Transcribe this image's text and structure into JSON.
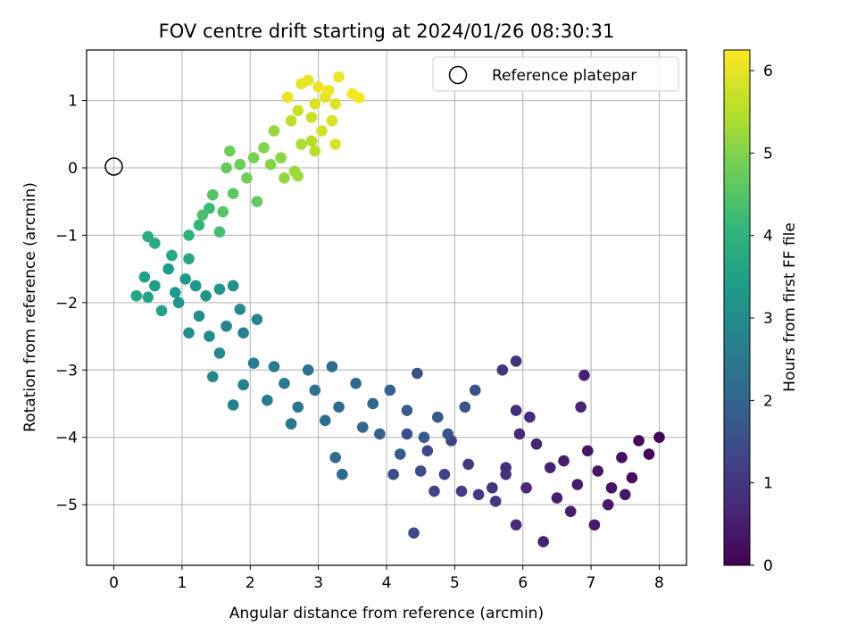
{
  "chart_data": {
    "type": "scatter",
    "title": "FOV centre drift starting at 2024/01/26 08:30:31",
    "xlabel": "Angular distance from reference (arcmin)",
    "ylabel": "Rotation from reference (arcmin)",
    "xlim": [
      -0.4,
      8.4
    ],
    "ylim": [
      -5.9,
      1.75
    ],
    "x_ticks": [
      0,
      1,
      2,
      3,
      4,
      5,
      6,
      7,
      8
    ],
    "y_ticks": [
      -5,
      -4,
      -3,
      -2,
      -1,
      0,
      1
    ],
    "grid": true,
    "legend": {
      "placement": "top-right",
      "entries": [
        "Reference platepar"
      ]
    },
    "reference_point": {
      "x": 0,
      "y": 0,
      "label": "Reference platepar"
    },
    "colorbar": {
      "label": "Hours from first FF file",
      "range": [
        0,
        6.25
      ],
      "ticks": [
        0,
        1,
        2,
        3,
        4,
        5,
        6
      ],
      "colormap": "viridis"
    },
    "series": [
      {
        "points": [
          {
            "x": 8.0,
            "y": -4.0,
            "h": 0.05
          },
          {
            "x": 7.85,
            "y": -4.25,
            "h": 0.1
          },
          {
            "x": 7.7,
            "y": -4.05,
            "h": 0.15
          },
          {
            "x": 7.6,
            "y": -4.6,
            "h": 0.2
          },
          {
            "x": 7.45,
            "y": -4.3,
            "h": 0.25
          },
          {
            "x": 7.3,
            "y": -4.75,
            "h": 0.3
          },
          {
            "x": 7.1,
            "y": -4.5,
            "h": 0.35
          },
          {
            "x": 6.95,
            "y": -4.2,
            "h": 0.4
          },
          {
            "x": 7.05,
            "y": -5.3,
            "h": 0.42
          },
          {
            "x": 6.8,
            "y": -4.7,
            "h": 0.45
          },
          {
            "x": 6.6,
            "y": -4.35,
            "h": 0.5
          },
          {
            "x": 6.5,
            "y": -4.9,
            "h": 0.55
          },
          {
            "x": 6.3,
            "y": -5.55,
            "h": 0.58
          },
          {
            "x": 6.4,
            "y": -4.45,
            "h": 0.6
          },
          {
            "x": 6.2,
            "y": -4.1,
            "h": 0.65
          },
          {
            "x": 6.05,
            "y": -4.75,
            "h": 0.7
          },
          {
            "x": 5.9,
            "y": -5.3,
            "h": 0.72
          },
          {
            "x": 5.95,
            "y": -3.95,
            "h": 0.75
          },
          {
            "x": 5.9,
            "y": -3.6,
            "h": 0.78
          },
          {
            "x": 6.1,
            "y": -3.7,
            "h": 0.8
          },
          {
            "x": 5.75,
            "y": -4.45,
            "h": 0.82
          },
          {
            "x": 5.9,
            "y": -2.87,
            "h": 0.85
          },
          {
            "x": 6.9,
            "y": -3.08,
            "h": 0.6
          },
          {
            "x": 6.85,
            "y": -3.55,
            "h": 0.65
          },
          {
            "x": 7.5,
            "y": -4.85,
            "h": 0.4
          },
          {
            "x": 7.25,
            "y": -5.0,
            "h": 0.45
          },
          {
            "x": 6.7,
            "y": -5.1,
            "h": 0.5
          },
          {
            "x": 5.75,
            "y": -4.55,
            "h": 0.9
          },
          {
            "x": 5.55,
            "y": -4.75,
            "h": 0.95
          },
          {
            "x": 5.7,
            "y": -3.0,
            "h": 0.95
          },
          {
            "x": 5.6,
            "y": -4.95,
            "h": 1.0
          },
          {
            "x": 5.35,
            "y": -4.85,
            "h": 1.05
          },
          {
            "x": 5.2,
            "y": -4.4,
            "h": 1.1
          },
          {
            "x": 5.1,
            "y": -4.8,
            "h": 1.15
          },
          {
            "x": 4.95,
            "y": -4.05,
            "h": 1.2
          },
          {
            "x": 4.85,
            "y": -4.55,
            "h": 1.25
          },
          {
            "x": 4.7,
            "y": -4.8,
            "h": 1.3
          },
          {
            "x": 4.6,
            "y": -4.2,
            "h": 1.35
          },
          {
            "x": 4.5,
            "y": -4.5,
            "h": 1.4
          },
          {
            "x": 4.4,
            "y": -5.42,
            "h": 1.42
          },
          {
            "x": 4.3,
            "y": -3.95,
            "h": 1.45
          },
          {
            "x": 4.1,
            "y": -4.55,
            "h": 1.5
          },
          {
            "x": 4.45,
            "y": -3.05,
            "h": 1.55
          },
          {
            "x": 5.3,
            "y": -3.3,
            "h": 1.6
          },
          {
            "x": 5.15,
            "y": -3.55,
            "h": 1.6
          },
          {
            "x": 4.9,
            "y": -3.95,
            "h": 1.65
          },
          {
            "x": 4.75,
            "y": -3.7,
            "h": 1.7
          },
          {
            "x": 4.55,
            "y": -4.0,
            "h": 1.75
          },
          {
            "x": 4.3,
            "y": -3.6,
            "h": 1.8
          },
          {
            "x": 4.2,
            "y": -4.25,
            "h": 1.85
          },
          {
            "x": 4.05,
            "y": -3.3,
            "h": 1.9
          },
          {
            "x": 3.9,
            "y": -3.95,
            "h": 1.95
          },
          {
            "x": 3.8,
            "y": -3.5,
            "h": 2.0
          },
          {
            "x": 3.65,
            "y": -3.85,
            "h": 2.05
          },
          {
            "x": 3.55,
            "y": -3.2,
            "h": 2.1
          },
          {
            "x": 3.35,
            "y": -4.55,
            "h": 2.1
          },
          {
            "x": 3.25,
            "y": -4.3,
            "h": 2.12
          },
          {
            "x": 3.3,
            "y": -3.55,
            "h": 2.15
          },
          {
            "x": 3.2,
            "y": -2.95,
            "h": 2.2
          },
          {
            "x": 3.1,
            "y": -3.75,
            "h": 2.25
          },
          {
            "x": 2.95,
            "y": -3.3,
            "h": 2.3
          },
          {
            "x": 2.85,
            "y": -3.0,
            "h": 2.35
          },
          {
            "x": 2.7,
            "y": -3.55,
            "h": 2.4
          },
          {
            "x": 2.6,
            "y": -3.8,
            "h": 2.45
          },
          {
            "x": 2.5,
            "y": -3.2,
            "h": 2.5
          },
          {
            "x": 2.35,
            "y": -2.95,
            "h": 2.55
          },
          {
            "x": 2.25,
            "y": -3.45,
            "h": 2.6
          },
          {
            "x": 2.05,
            "y": -2.9,
            "h": 2.65
          },
          {
            "x": 1.9,
            "y": -2.45,
            "h": 2.7
          },
          {
            "x": 1.75,
            "y": -3.52,
            "h": 2.75
          },
          {
            "x": 1.65,
            "y": -2.35,
            "h": 2.8
          },
          {
            "x": 2.1,
            "y": -2.25,
            "h": 2.85
          },
          {
            "x": 1.85,
            "y": -2.1,
            "h": 2.9
          },
          {
            "x": 1.55,
            "y": -2.75,
            "h": 2.95
          },
          {
            "x": 1.4,
            "y": -2.5,
            "h": 3.0
          },
          {
            "x": 1.25,
            "y": -2.2,
            "h": 3.05
          },
          {
            "x": 1.1,
            "y": -2.45,
            "h": 3.1
          },
          {
            "x": 0.95,
            "y": -2.0,
            "h": 3.15
          },
          {
            "x": 1.35,
            "y": -1.9,
            "h": 3.2
          },
          {
            "x": 1.2,
            "y": -1.75,
            "h": 3.25
          },
          {
            "x": 1.05,
            "y": -1.65,
            "h": 3.3
          },
          {
            "x": 0.9,
            "y": -1.85,
            "h": 3.35
          },
          {
            "x": 0.8,
            "y": -1.5,
            "h": 3.4
          },
          {
            "x": 0.6,
            "y": -1.75,
            "h": 3.45
          },
          {
            "x": 0.45,
            "y": -1.62,
            "h": 3.5
          },
          {
            "x": 0.7,
            "y": -2.12,
            "h": 3.55
          },
          {
            "x": 0.5,
            "y": -1.92,
            "h": 3.6
          },
          {
            "x": 0.33,
            "y": -1.9,
            "h": 3.62
          },
          {
            "x": 1.1,
            "y": -1.35,
            "h": 3.65
          },
          {
            "x": 0.85,
            "y": -1.3,
            "h": 3.7
          },
          {
            "x": 0.6,
            "y": -1.12,
            "h": 3.75
          },
          {
            "x": 0.5,
            "y": -1.02,
            "h": 3.8
          },
          {
            "x": 1.55,
            "y": -1.8,
            "h": 3.2
          },
          {
            "x": 1.75,
            "y": -1.75,
            "h": 3.1
          },
          {
            "x": 1.45,
            "y": -3.1,
            "h": 2.9
          },
          {
            "x": 1.9,
            "y": -3.22,
            "h": 2.7
          },
          {
            "x": 1.1,
            "y": -1.0,
            "h": 4.0
          },
          {
            "x": 1.25,
            "y": -0.85,
            "h": 4.1
          },
          {
            "x": 1.4,
            "y": -0.6,
            "h": 4.2
          },
          {
            "x": 1.55,
            "y": -0.95,
            "h": 4.3
          },
          {
            "x": 1.3,
            "y": -0.7,
            "h": 4.4
          },
          {
            "x": 1.45,
            "y": -0.4,
            "h": 4.5
          },
          {
            "x": 1.6,
            "y": -0.65,
            "h": 4.55
          },
          {
            "x": 1.75,
            "y": -0.38,
            "h": 4.6
          },
          {
            "x": 1.65,
            "y": 0.0,
            "h": 4.7
          },
          {
            "x": 1.85,
            "y": 0.05,
            "h": 4.75
          },
          {
            "x": 1.7,
            "y": 0.25,
            "h": 4.8
          },
          {
            "x": 1.95,
            "y": -0.15,
            "h": 4.85
          },
          {
            "x": 2.05,
            "y": 0.15,
            "h": 4.9
          },
          {
            "x": 2.2,
            "y": 0.3,
            "h": 5.0
          },
          {
            "x": 2.1,
            "y": -0.5,
            "h": 4.65
          },
          {
            "x": 2.3,
            "y": 0.05,
            "h": 5.05
          },
          {
            "x": 2.45,
            "y": 0.15,
            "h": 5.1
          },
          {
            "x": 2.35,
            "y": 0.55,
            "h": 5.2
          },
          {
            "x": 2.5,
            "y": -0.15,
            "h": 5.15
          },
          {
            "x": 2.65,
            "y": -0.05,
            "h": 5.25
          },
          {
            "x": 2.7,
            "y": -0.12,
            "h": 5.3
          },
          {
            "x": 2.75,
            "y": 0.35,
            "h": 5.4
          },
          {
            "x": 2.9,
            "y": 0.4,
            "h": 5.5
          },
          {
            "x": 2.95,
            "y": 0.25,
            "h": 5.55
          },
          {
            "x": 2.6,
            "y": 0.7,
            "h": 5.6
          },
          {
            "x": 2.7,
            "y": 0.85,
            "h": 5.7
          },
          {
            "x": 2.9,
            "y": 0.75,
            "h": 5.75
          },
          {
            "x": 3.05,
            "y": 0.55,
            "h": 5.8
          },
          {
            "x": 3.2,
            "y": 0.7,
            "h": 5.85
          },
          {
            "x": 3.25,
            "y": 0.35,
            "h": 5.85
          },
          {
            "x": 2.95,
            "y": 0.95,
            "h": 5.9
          },
          {
            "x": 3.1,
            "y": 1.05,
            "h": 5.95
          },
          {
            "x": 2.75,
            "y": 1.25,
            "h": 6.0
          },
          {
            "x": 2.85,
            "y": 1.3,
            "h": 6.02
          },
          {
            "x": 3.0,
            "y": 1.2,
            "h": 6.05
          },
          {
            "x": 3.3,
            "y": 1.35,
            "h": 6.1
          },
          {
            "x": 3.15,
            "y": 1.15,
            "h": 6.1
          },
          {
            "x": 3.5,
            "y": 1.1,
            "h": 6.15
          },
          {
            "x": 3.6,
            "y": 1.04,
            "h": 6.2
          },
          {
            "x": 2.55,
            "y": 1.05,
            "h": 6.0
          },
          {
            "x": 3.25,
            "y": 0.95,
            "h": 5.9
          }
        ]
      }
    ]
  }
}
